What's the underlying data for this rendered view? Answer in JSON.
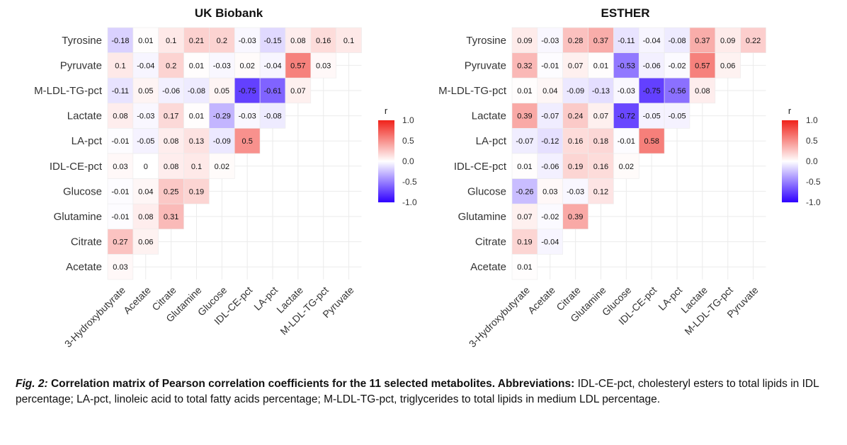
{
  "chart_data": [
    {
      "type": "heatmap",
      "title": "UK Biobank",
      "rows": [
        "Tyrosine",
        "Pyruvate",
        "M-LDL-TG-pct",
        "Lactate",
        "LA-pct",
        "IDL-CE-pct",
        "Glucose",
        "Glutamine",
        "Citrate",
        "Acetate"
      ],
      "columns": [
        "3-Hydroxybutyrate",
        "Acetate",
        "Citrate",
        "Glutamine",
        "Glucose",
        "IDL-CE-pct",
        "LA-pct",
        "Lactate",
        "M-LDL-TG-pct",
        "Pyruvate"
      ],
      "values": [
        [
          -0.18,
          0.01,
          0.1,
          0.21,
          0.2,
          -0.03,
          -0.15,
          0.08,
          0.16,
          0.1
        ],
        [
          0.1,
          -0.04,
          0.2,
          0.01,
          -0.03,
          0.02,
          -0.04,
          0.57,
          0.03
        ],
        [
          -0.11,
          0.05,
          -0.06,
          -0.08,
          0.05,
          -0.75,
          -0.61,
          0.07
        ],
        [
          0.08,
          -0.03,
          0.17,
          0.01,
          -0.29,
          -0.03,
          -0.08
        ],
        [
          -0.01,
          -0.05,
          0.08,
          0.13,
          -0.09,
          0.5
        ],
        [
          0.03,
          0,
          0.08,
          0.1,
          0.02
        ],
        [
          -0.01,
          0.04,
          0.25,
          0.19
        ],
        [
          -0.01,
          0.08,
          0.31
        ],
        [
          0.27,
          0.06
        ],
        [
          0.03
        ]
      ],
      "legend": {
        "title": "r",
        "ticks": [
          "1.0",
          "0.5",
          "0.0",
          "-0.5",
          "-1.0"
        ],
        "range": [
          -1,
          1
        ],
        "position": "right"
      }
    },
    {
      "type": "heatmap",
      "title": "ESTHER",
      "rows": [
        "Tyrosine",
        "Pyruvate",
        "M-LDL-TG-pct",
        "Lactate",
        "LA-pct",
        "IDL-CE-pct",
        "Glucose",
        "Glutamine",
        "Citrate",
        "Acetate"
      ],
      "columns": [
        "3-Hydroxybutyrate",
        "Acetate",
        "Citrate",
        "Glutamine",
        "Glucose",
        "IDL-CE-pct",
        "LA-pct",
        "Lactate",
        "M-LDL-TG-pct",
        "Pyruvate"
      ],
      "values": [
        [
          0.09,
          -0.03,
          0.28,
          0.37,
          -0.11,
          -0.04,
          -0.08,
          0.37,
          0.09,
          0.22
        ],
        [
          0.32,
          -0.01,
          0.07,
          0.01,
          -0.53,
          -0.06,
          -0.02,
          0.57,
          0.06
        ],
        [
          0.01,
          0.04,
          -0.09,
          -0.13,
          -0.03,
          -0.75,
          -0.56,
          0.08
        ],
        [
          0.39,
          -0.07,
          0.24,
          0.07,
          -0.72,
          -0.05,
          -0.05
        ],
        [
          -0.07,
          -0.12,
          0.16,
          0.18,
          -0.01,
          0.58
        ],
        [
          0.01,
          -0.06,
          0.19,
          0.16,
          0.02
        ],
        [
          -0.26,
          0.03,
          -0.03,
          0.12
        ],
        [
          0.07,
          -0.02,
          0.39
        ],
        [
          0.19,
          -0.04
        ],
        [
          0.01
        ]
      ],
      "legend": {
        "title": "r",
        "ticks": [
          "1.0",
          "0.5",
          "0.0",
          "-0.5",
          "-1.0"
        ],
        "range": [
          -1,
          1
        ],
        "position": "right"
      }
    }
  ],
  "colors": {
    "negative": "#2f00ff",
    "neutral": "#ffffff",
    "positive": "#f0221a",
    "grid": "#ebebeb"
  },
  "caption": {
    "figure_label": "Fig. 2:",
    "bold_text": "Correlation matrix of Pearson correlation coefficients for the 11 selected metabolites. Abbreviations:",
    "text": "IDL-CE-pct, cholesteryl esters to total lipids in IDL percentage; LA-pct, linoleic acid to total fatty acids percentage; M-LDL-TG-pct, triglycerides to total lipids in medium LDL percentage."
  }
}
